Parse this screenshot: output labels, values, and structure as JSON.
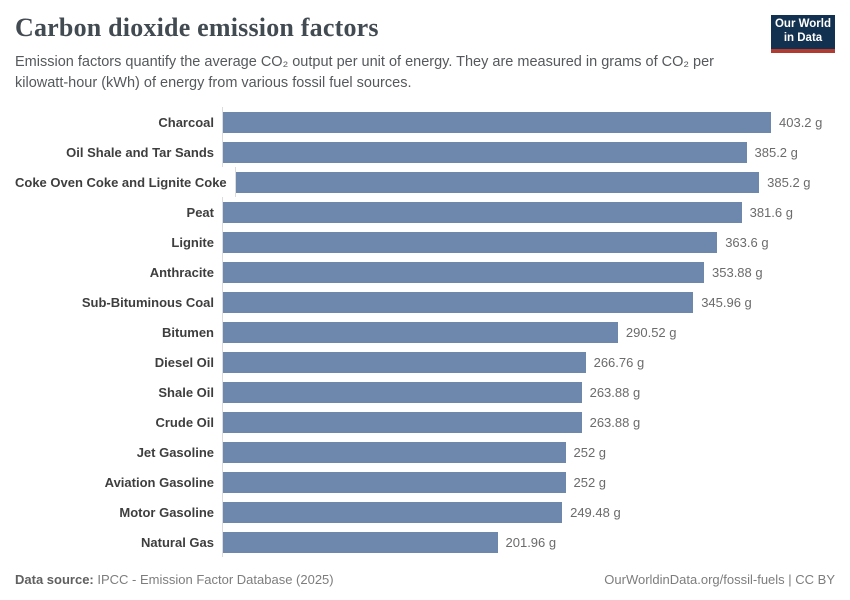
{
  "header": {
    "title": "Carbon dioxide emission factors",
    "subtitle": "Emission factors quantify the average CO₂ output per unit of energy. They are measured in grams of CO₂ per kilowatt-hour (kWh) of energy from various fossil fuel sources."
  },
  "logo": {
    "line1": "Our World",
    "line2": "in Data"
  },
  "chart_data": {
    "type": "bar",
    "orientation": "horizontal",
    "categories": [
      "Charcoal",
      "Oil Shale and Tar Sands",
      "Coke Oven Coke and Lignite Coke",
      "Peat",
      "Lignite",
      "Anthracite",
      "Sub-Bituminous Coal",
      "Bitumen",
      "Diesel Oil",
      "Shale Oil",
      "Crude Oil",
      "Jet Gasoline",
      "Aviation Gasoline",
      "Motor Gasoline",
      "Natural Gas"
    ],
    "values": [
      403.2,
      385.2,
      385.2,
      381.6,
      363.6,
      353.88,
      345.96,
      290.52,
      266.76,
      263.88,
      263.88,
      252,
      252,
      249.48,
      201.96
    ],
    "value_labels": [
      "403.2 g",
      "385.2 g",
      "385.2 g",
      "381.6 g",
      "363.6 g",
      "353.88 g",
      "345.96 g",
      "290.52 g",
      "266.76 g",
      "263.88 g",
      "263.88 g",
      "252 g",
      "252 g",
      "249.48 g",
      "201.96 g"
    ],
    "unit": "g",
    "title": "Carbon dioxide emission factors",
    "xlabel": "",
    "ylabel": "",
    "xlim": [
      0,
      403.2
    ],
    "grid": false,
    "legend": false
  },
  "footer": {
    "source_label": "Data source:",
    "source_text": " IPCC - Emission Factor Database (2025)",
    "attribution": "OurWorldinData.org/fossil-fuels | CC BY"
  },
  "colors": {
    "bar": "#6d87ad",
    "logo_bg": "#12304f",
    "logo_accent": "#b13a31",
    "axis_line": "#dcdcdc"
  }
}
